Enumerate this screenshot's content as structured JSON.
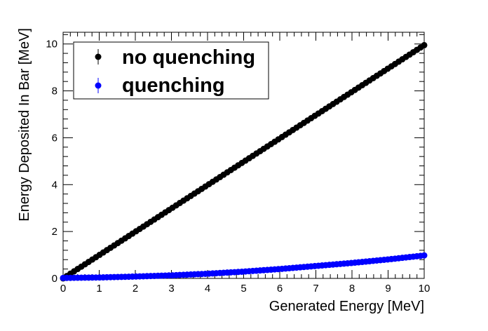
{
  "chart_data": {
    "type": "scatter",
    "title": "",
    "xlabel": "Generated Energy [MeV]",
    "ylabel": "Energy Deposited In Bar [MeV]",
    "xlim": [
      0,
      10
    ],
    "ylim": [
      0,
      10.5
    ],
    "xticks": [
      "0",
      "1",
      "2",
      "3",
      "4",
      "5",
      "6",
      "7",
      "8",
      "9",
      "10"
    ],
    "yticks": [
      "0",
      "2",
      "4",
      "6",
      "8",
      "10"
    ],
    "grid": false,
    "legend_position": "top-left",
    "series": [
      {
        "name": "no quenching",
        "color": "#000000",
        "marker": "circle-with-error-bar",
        "x_range": [
          0,
          10
        ],
        "points": 100,
        "relation": "y = x",
        "endpoints": [
          [
            0,
            0
          ],
          [
            10,
            9.95
          ]
        ]
      },
      {
        "name": "quenching",
        "color": "#0000ff",
        "marker": "circle-with-error-bar",
        "x_range": [
          0,
          10
        ],
        "points": 100,
        "relation": "quadratic-like rise",
        "samples": [
          [
            0,
            0.02
          ],
          [
            1,
            0.04
          ],
          [
            2,
            0.08
          ],
          [
            3,
            0.13
          ],
          [
            4,
            0.2
          ],
          [
            5,
            0.29
          ],
          [
            6,
            0.4
          ],
          [
            7,
            0.53
          ],
          [
            8,
            0.66
          ],
          [
            9,
            0.81
          ],
          [
            10,
            0.98
          ]
        ]
      }
    ]
  }
}
